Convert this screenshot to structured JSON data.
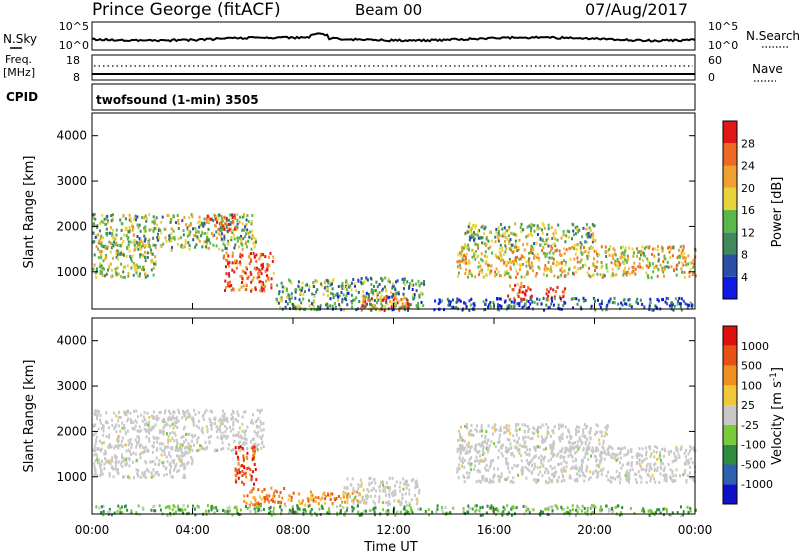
{
  "header": {
    "station": "Prince George (fitACF)",
    "beam": "Beam 00",
    "date": "07/Aug/2017"
  },
  "top_panels": {
    "nsky_label": "N.Sky",
    "nsky_ticks": [
      "10^5",
      "10^0"
    ],
    "nsearch_label": "N.Search",
    "nsearch_ticks": [
      "10^5",
      "10^0"
    ],
    "freq_label_1": "Freq.",
    "freq_label_2": "[MHz]",
    "freq_ticks": [
      "18",
      "8"
    ],
    "nave_label": "Nave",
    "nave_ticks": [
      "60",
      "0"
    ],
    "cpid_label": "CPID",
    "cpid_text": "twofsound (1-min) 3505"
  },
  "chart_data": [
    {
      "type": "heatmap",
      "title": "Power",
      "ylabel": "Slant Range [km]",
      "yticks": [
        "1000",
        "2000",
        "3000",
        "4000"
      ],
      "ylim": [
        180,
        4500
      ],
      "xlim_hours": [
        0,
        24
      ],
      "colorbar_label": "Power [dB]",
      "colorbar_ticks": [
        "4",
        "8",
        "12",
        "16",
        "20",
        "24",
        "28"
      ],
      "colors": [
        "#1018e6",
        "#2b4fa8",
        "#3f8a5c",
        "#5ab84a",
        "#e8d43a",
        "#f0a030",
        "#ee6a22",
        "#e01818"
      ],
      "regions": [
        {
          "t0": 0.0,
          "t1": 6.5,
          "r0": 1500,
          "r1": 2300,
          "level": 0.45
        },
        {
          "t0": 0.0,
          "t1": 2.5,
          "r0": 900,
          "r1": 1700,
          "level": 0.5
        },
        {
          "t0": 4.5,
          "t1": 5.8,
          "r0": 1950,
          "r1": 2300,
          "level": 0.8
        },
        {
          "t0": 5.2,
          "t1": 7.2,
          "r0": 600,
          "r1": 1450,
          "level": 0.85
        },
        {
          "t0": 7.3,
          "t1": 13.2,
          "r0": 180,
          "r1": 900,
          "level": 0.35
        },
        {
          "t0": 10.5,
          "t1": 12.6,
          "r0": 180,
          "r1": 500,
          "level": 0.8
        },
        {
          "t0": 14.5,
          "t1": 24.0,
          "r0": 900,
          "r1": 1600,
          "level": 0.6
        },
        {
          "t0": 14.8,
          "t1": 20.0,
          "r0": 1600,
          "r1": 2100,
          "level": 0.45
        },
        {
          "t0": 16.5,
          "t1": 17.5,
          "r0": 400,
          "r1": 800,
          "level": 0.85
        },
        {
          "t0": 18.0,
          "t1": 18.8,
          "r0": 400,
          "r1": 700,
          "level": 0.9
        },
        {
          "t0": 13.5,
          "t1": 24.0,
          "r0": 180,
          "r1": 450,
          "level": 0.2
        }
      ]
    },
    {
      "type": "heatmap",
      "title": "Velocity",
      "xlabel": "Time UT",
      "ylabel": "Slant Range [km]",
      "yticks": [
        "1000",
        "2000",
        "3000",
        "4000"
      ],
      "ylim": [
        180,
        4500
      ],
      "xticks": [
        "00:00",
        "04:00",
        "08:00",
        "12:00",
        "16:00",
        "20:00",
        "00:00"
      ],
      "xlim_hours": [
        0,
        24
      ],
      "colorbar_label": "Velocity [m s^-1]",
      "colorbar_ticks": [
        "1000",
        "500",
        "100",
        "25",
        "-25",
        "-100",
        "-500",
        "-1000"
      ],
      "colors": [
        "#1010c8",
        "#3060b0",
        "#2e8b40",
        "#7acb3a",
        "#c8c8c8",
        "#f0c838",
        "#f09020",
        "#e85018",
        "#e01010"
      ],
      "regions": [
        {
          "t0": 0.0,
          "t1": 6.8,
          "r0": 1600,
          "r1": 2500,
          "level": 0.5
        },
        {
          "t0": 0.0,
          "t1": 4.0,
          "r0": 1000,
          "r1": 1700,
          "level": 0.5
        },
        {
          "t0": 5.6,
          "t1": 6.5,
          "r0": 850,
          "r1": 1700,
          "level": 0.85
        },
        {
          "t0": 6.0,
          "t1": 8.0,
          "r0": 400,
          "r1": 800,
          "level": 0.75
        },
        {
          "t0": 8.2,
          "t1": 10.8,
          "r0": 400,
          "r1": 700,
          "level": 0.72
        },
        {
          "t0": 10.0,
          "t1": 13.0,
          "r0": 400,
          "r1": 1000,
          "level": 0.5
        },
        {
          "t0": 14.5,
          "t1": 24.0,
          "r0": 900,
          "r1": 1700,
          "level": 0.5
        },
        {
          "t0": 14.5,
          "t1": 20.5,
          "r0": 1600,
          "r1": 2200,
          "level": 0.5
        },
        {
          "t0": 0.0,
          "t1": 24.0,
          "r0": 180,
          "r1": 400,
          "level": 0.35
        }
      ]
    }
  ]
}
